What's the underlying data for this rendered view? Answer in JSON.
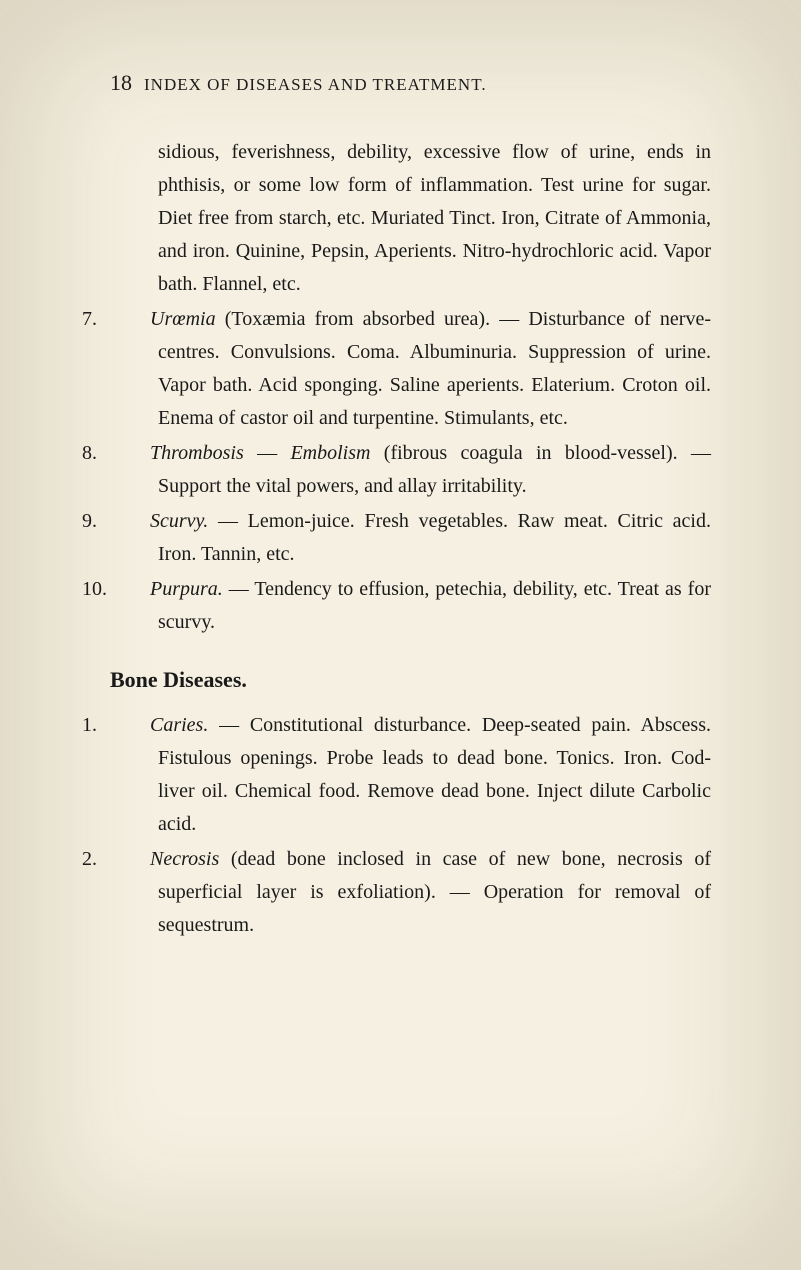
{
  "page": {
    "number": "18",
    "title": "INDEX OF DISEASES AND TREATMENT.",
    "background_color": "#f5f0e1",
    "text_color": "#1a1a1a",
    "body_fontsize": 20,
    "header_fontsize": 17,
    "section_fontsize": 22
  },
  "entries": {
    "continuation": "sidious, feverishness, debility, excessive flow of urine, ends in phthisis, or some low form of inflammation. Test urine for sugar. Diet free from starch, etc. Muriated Tinct. Iron, Citrate of Ammonia, and iron. Quinine, Pepsin, Aperients. Nitro-hydrochloric acid. Vapor bath. Flannel, etc.",
    "item7": {
      "num": "7.",
      "term": "Urœmia",
      "text": " (Toxæmia from absorbed urea). — Disturbance of nerve-centres. Convulsions. Coma. Albuminuria. Suppression of urine. Vapor bath. Acid sponging. Saline aperients. Elaterium. Croton oil. Enema of castor oil and turpentine. Stimulants, etc."
    },
    "item8": {
      "num": "8.",
      "term": "Thrombosis",
      "connector": " — ",
      "term2": "Embolism",
      "text": " (fibrous coagula in blood-vessel). — Support the vital powers, and allay irritability."
    },
    "item9": {
      "num": "9.",
      "term": "Scurvy.",
      "text": " — Lemon-juice. Fresh vegetables. Raw meat. Citric acid. Iron. Tannin, etc."
    },
    "item10": {
      "num": "10.",
      "term": "Purpura.",
      "text": " — Tendency to effusion, petechia, debility, etc. Treat as for scurvy."
    }
  },
  "section": {
    "title": "Bone Diseases.",
    "item1": {
      "num": "1.",
      "term": "Caries.",
      "text": " — Constitutional disturbance. Deep-seated pain. Abscess. Fistulous openings. Probe leads to dead bone. Tonics. Iron. Cod-liver oil. Chemical food. Remove dead bone. Inject dilute Carbolic acid."
    },
    "item2": {
      "num": "2.",
      "term": "Necrosis",
      "text": " (dead bone inclosed in case of new bone, necrosis of superficial layer is exfoliation). — Operation for removal of sequestrum."
    }
  }
}
